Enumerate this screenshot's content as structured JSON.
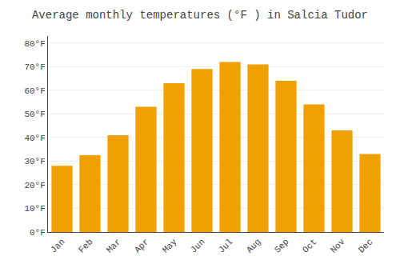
{
  "chart_data": {
    "type": "bar",
    "title": "Average monthly temperatures (°F ) in Salcia Tudor",
    "categories": [
      "Jan",
      "Feb",
      "Mar",
      "Apr",
      "May",
      "Jun",
      "Jul",
      "Aug",
      "Sep",
      "Oct",
      "Nov",
      "Dec"
    ],
    "values": [
      28,
      32.5,
      41,
      53,
      63,
      69,
      72,
      71,
      64,
      54,
      43,
      33
    ],
    "color": "#F0A000",
    "ylim": [
      0,
      83
    ],
    "yticks": [
      {
        "value": 0,
        "label": "0°F"
      },
      {
        "value": 10,
        "label": "10°F"
      },
      {
        "value": 20,
        "label": "20°F"
      },
      {
        "value": 30,
        "label": "30°F"
      },
      {
        "value": 40,
        "label": "40°F"
      },
      {
        "value": 50,
        "label": "50°F"
      },
      {
        "value": 60,
        "label": "60°F"
      },
      {
        "value": 70,
        "label": "70°F"
      },
      {
        "value": 80,
        "label": "80°F"
      }
    ],
    "grid": true
  }
}
